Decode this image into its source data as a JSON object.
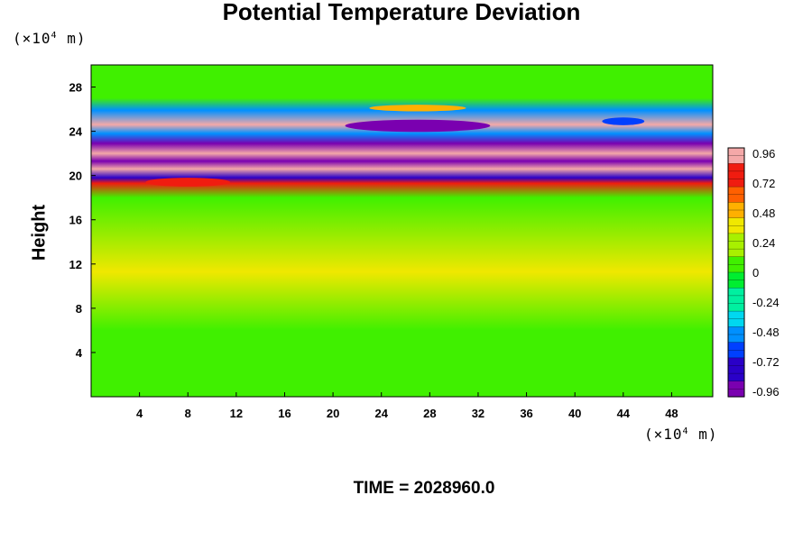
{
  "chart_data": {
    "type": "heatmap",
    "title": "Potential Temperature Deviation",
    "ylabel": "Height",
    "y_unit_label": "(×10",
    "x_unit_label": "(×10",
    "unit_exponent": "4",
    "unit_suffix": " m)",
    "footer": "TIME = 2028960.0",
    "xlim": [
      0,
      51.4
    ],
    "ylim": [
      0,
      30
    ],
    "x_ticks": [
      4,
      8,
      12,
      16,
      20,
      24,
      28,
      32,
      36,
      40,
      44,
      48
    ],
    "y_ticks": [
      4,
      8,
      12,
      16,
      20,
      24,
      28
    ],
    "colorbar": {
      "range": [
        -0.96,
        0.96
      ],
      "tick_labels": [
        "0.96",
        "0.72",
        "0.48",
        "0.24",
        "0",
        "-0.24",
        "-0.48",
        "-0.72",
        "-0.96"
      ]
    },
    "colormap": [
      "#7a00b0",
      "#2a00c8",
      "#0040ff",
      "#0090ff",
      "#00d8f0",
      "#00f0a0",
      "#00ee30",
      "#40f000",
      "#a8f000",
      "#f0e800",
      "#ffb000",
      "#ff6000",
      "#f01c10",
      "#f4a8a8"
    ],
    "field_bands": [
      {
        "y": 29.0,
        "value": 0.03
      },
      {
        "y": 27.0,
        "value": 0.0
      },
      {
        "y": 25.9,
        "value": -0.45
      },
      {
        "y": 24.6,
        "value": 0.96
      },
      {
        "y": 23.8,
        "value": -0.5
      },
      {
        "y": 22.9,
        "value": -0.96
      },
      {
        "y": 22.0,
        "value": 0.96
      },
      {
        "y": 21.3,
        "value": -0.96
      },
      {
        "y": 20.6,
        "value": 0.96
      },
      {
        "y": 19.8,
        "value": -0.8
      },
      {
        "y": 19.3,
        "value": 0.75
      },
      {
        "y": 18.0,
        "value": 0.1
      },
      {
        "y": 11.3,
        "value": 0.28
      },
      {
        "y": 6.0,
        "value": 0.0
      }
    ],
    "features": [
      {
        "x": 27,
        "y": 24.5,
        "w": 12,
        "h": 1.1,
        "value": -0.96
      },
      {
        "x": 27,
        "y": 26.1,
        "w": 8,
        "h": 0.6,
        "value": 0.5
      },
      {
        "x": 8,
        "y": 19.4,
        "w": 7,
        "h": 0.8,
        "value": 0.8
      },
      {
        "x": 44,
        "y": 24.9,
        "w": 3.5,
        "h": 0.7,
        "value": -0.6
      }
    ]
  }
}
